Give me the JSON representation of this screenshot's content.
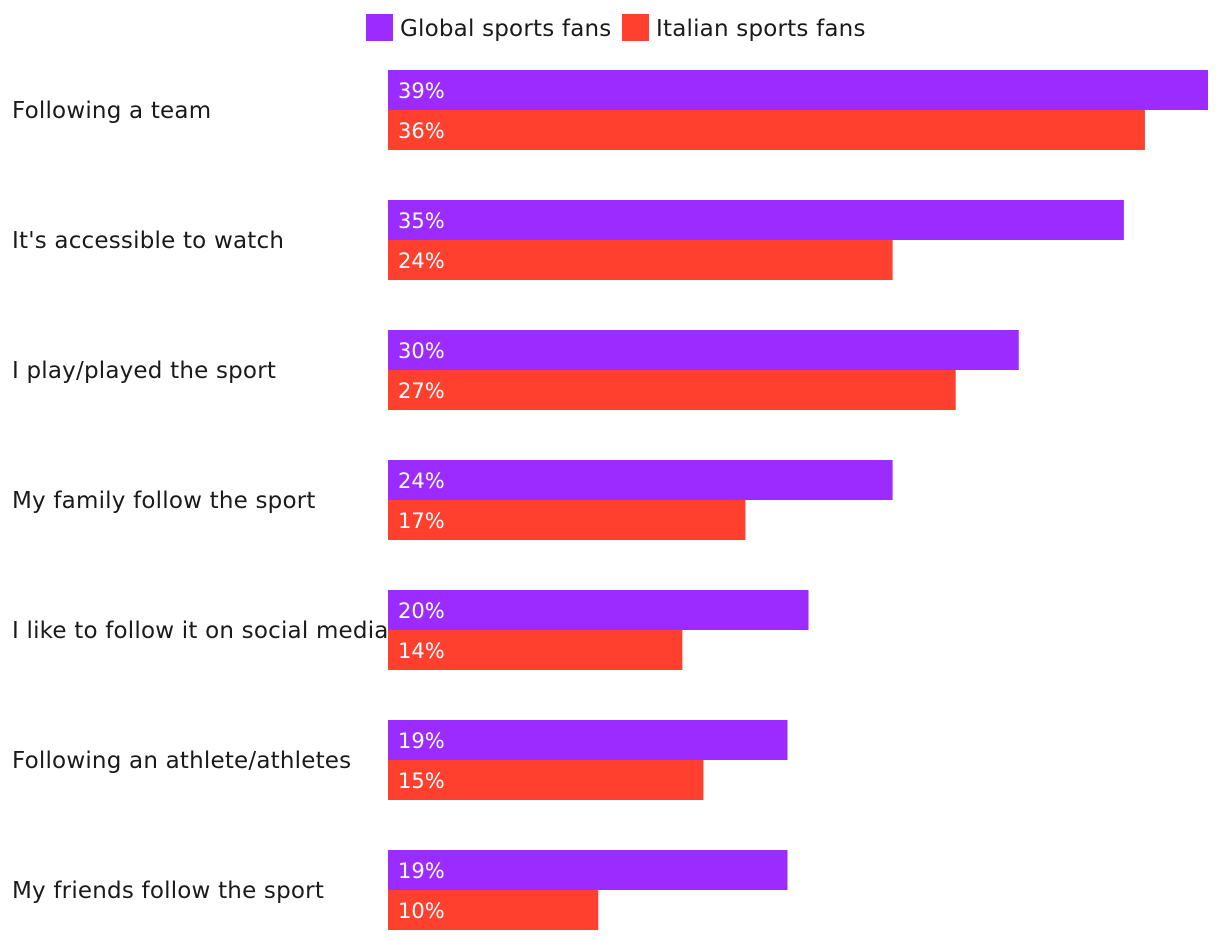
{
  "chart_data": {
    "type": "bar",
    "orientation": "horizontal",
    "categories": [
      "Following a team",
      "It's accessible to watch",
      "I play/played the sport",
      "My family follow the sport",
      "I like to follow it on social media",
      "Following an athlete/athletes",
      "My friends follow the sport"
    ],
    "series": [
      {
        "name": "Global sports fans",
        "color": "#9b2bff",
        "values": [
          39,
          35,
          30,
          24,
          20,
          19,
          19
        ],
        "labels": [
          "39%",
          "35%",
          "30%",
          "24%",
          "20%",
          "19%",
          "19%"
        ]
      },
      {
        "name": "Italian sports fans",
        "color": "#ff402e",
        "values": [
          36,
          24,
          27,
          17,
          14,
          15,
          10
        ],
        "labels": [
          "36%",
          "24%",
          "27%",
          "17%",
          "14%",
          "15%",
          "10%"
        ]
      }
    ],
    "xlim": [
      0,
      39
    ],
    "grid": false,
    "legend": "top-center",
    "title": "",
    "xlabel": "",
    "ylabel": ""
  }
}
